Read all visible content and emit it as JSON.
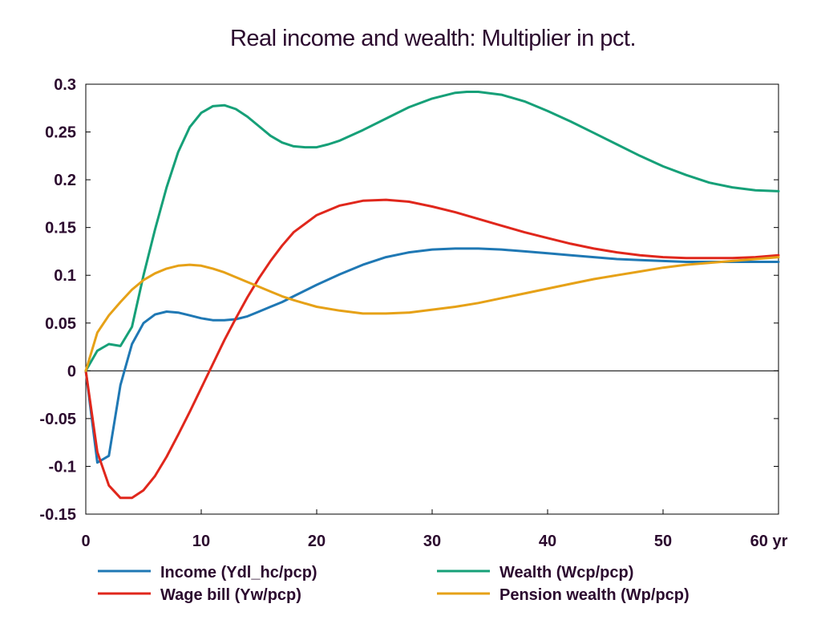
{
  "chart_data": {
    "type": "line",
    "title": "Real income and wealth: Multiplier in pct.",
    "xlim": [
      0,
      60
    ],
    "ylim": [
      -0.15,
      0.3
    ],
    "x_ticks": [
      0,
      10,
      20,
      30,
      40,
      50,
      60
    ],
    "x_tick_labels": [
      "0",
      "10",
      "20",
      "30",
      "40",
      "50",
      "60 yr"
    ],
    "y_ticks": [
      -0.15,
      -0.1,
      -0.05,
      0,
      0.05,
      0.1,
      0.15,
      0.2,
      0.25,
      0.3
    ],
    "y_tick_labels": [
      "-0.15",
      "-0.1",
      "-0.05",
      "0",
      "0.05",
      "0.1",
      "0.15",
      "0.2",
      "0.25",
      "0.3"
    ],
    "zero_line": true,
    "grid": false,
    "legend_position": "bottom",
    "series": [
      {
        "name": "Income (Ydl_hc/pcp)",
        "color": "#1f78b4",
        "points": [
          [
            0,
            0
          ],
          [
            1,
            -0.096
          ],
          [
            2,
            -0.089
          ],
          [
            3,
            -0.015
          ],
          [
            4,
            0.028
          ],
          [
            5,
            0.05
          ],
          [
            6,
            0.059
          ],
          [
            7,
            0.062
          ],
          [
            8,
            0.061
          ],
          [
            9,
            0.058
          ],
          [
            10,
            0.055
          ],
          [
            11,
            0.053
          ],
          [
            12,
            0.053
          ],
          [
            13,
            0.054
          ],
          [
            14,
            0.057
          ],
          [
            15,
            0.062
          ],
          [
            16,
            0.067
          ],
          [
            17,
            0.072
          ],
          [
            18,
            0.078
          ],
          [
            20,
            0.09
          ],
          [
            22,
            0.101
          ],
          [
            24,
            0.111
          ],
          [
            26,
            0.119
          ],
          [
            28,
            0.124
          ],
          [
            30,
            0.127
          ],
          [
            32,
            0.128
          ],
          [
            34,
            0.128
          ],
          [
            36,
            0.127
          ],
          [
            38,
            0.125
          ],
          [
            40,
            0.123
          ],
          [
            42,
            0.121
          ],
          [
            44,
            0.119
          ],
          [
            46,
            0.117
          ],
          [
            48,
            0.116
          ],
          [
            50,
            0.115
          ],
          [
            52,
            0.114
          ],
          [
            54,
            0.114
          ],
          [
            56,
            0.114
          ],
          [
            58,
            0.114
          ],
          [
            60,
            0.114
          ]
        ]
      },
      {
        "name": "Wage bill (Yw/pcp)",
        "color": "#e0271c",
        "points": [
          [
            0,
            0
          ],
          [
            1,
            -0.085
          ],
          [
            2,
            -0.12
          ],
          [
            3,
            -0.133
          ],
          [
            4,
            -0.133
          ],
          [
            5,
            -0.125
          ],
          [
            6,
            -0.11
          ],
          [
            7,
            -0.09
          ],
          [
            8,
            -0.067
          ],
          [
            9,
            -0.043
          ],
          [
            10,
            -0.018
          ],
          [
            11,
            0.007
          ],
          [
            12,
            0.032
          ],
          [
            13,
            0.055
          ],
          [
            14,
            0.077
          ],
          [
            15,
            0.097
          ],
          [
            16,
            0.115
          ],
          [
            17,
            0.131
          ],
          [
            18,
            0.145
          ],
          [
            20,
            0.163
          ],
          [
            22,
            0.173
          ],
          [
            24,
            0.178
          ],
          [
            26,
            0.179
          ],
          [
            28,
            0.177
          ],
          [
            30,
            0.172
          ],
          [
            32,
            0.166
          ],
          [
            34,
            0.159
          ],
          [
            36,
            0.152
          ],
          [
            38,
            0.145
          ],
          [
            40,
            0.139
          ],
          [
            42,
            0.133
          ],
          [
            44,
            0.128
          ],
          [
            46,
            0.124
          ],
          [
            48,
            0.121
          ],
          [
            50,
            0.119
          ],
          [
            52,
            0.118
          ],
          [
            54,
            0.118
          ],
          [
            56,
            0.118
          ],
          [
            58,
            0.119
          ],
          [
            60,
            0.121
          ]
        ]
      },
      {
        "name": "Wealth (Wcp/pcp)",
        "color": "#16a078",
        "points": [
          [
            0,
            0
          ],
          [
            1,
            0.021
          ],
          [
            2,
            0.028
          ],
          [
            3,
            0.026
          ],
          [
            4,
            0.046
          ],
          [
            5,
            0.1
          ],
          [
            6,
            0.148
          ],
          [
            7,
            0.192
          ],
          [
            8,
            0.229
          ],
          [
            9,
            0.255
          ],
          [
            10,
            0.27
          ],
          [
            11,
            0.277
          ],
          [
            12,
            0.278
          ],
          [
            13,
            0.274
          ],
          [
            14,
            0.266
          ],
          [
            15,
            0.256
          ],
          [
            16,
            0.246
          ],
          [
            17,
            0.239
          ],
          [
            18,
            0.235
          ],
          [
            19,
            0.234
          ],
          [
            20,
            0.234
          ],
          [
            21,
            0.237
          ],
          [
            22,
            0.241
          ],
          [
            24,
            0.252
          ],
          [
            26,
            0.264
          ],
          [
            28,
            0.276
          ],
          [
            30,
            0.285
          ],
          [
            32,
            0.291
          ],
          [
            33,
            0.292
          ],
          [
            34,
            0.292
          ],
          [
            36,
            0.289
          ],
          [
            38,
            0.282
          ],
          [
            40,
            0.272
          ],
          [
            42,
            0.261
          ],
          [
            44,
            0.249
          ],
          [
            46,
            0.237
          ],
          [
            48,
            0.225
          ],
          [
            50,
            0.214
          ],
          [
            52,
            0.205
          ],
          [
            54,
            0.197
          ],
          [
            56,
            0.192
          ],
          [
            58,
            0.189
          ],
          [
            60,
            0.188
          ]
        ]
      },
      {
        "name": "Pension wealth (Wp/pcp)",
        "color": "#e6a117",
        "points": [
          [
            0,
            0
          ],
          [
            1,
            0.04
          ],
          [
            2,
            0.058
          ],
          [
            3,
            0.072
          ],
          [
            4,
            0.085
          ],
          [
            5,
            0.095
          ],
          [
            6,
            0.102
          ],
          [
            7,
            0.107
          ],
          [
            8,
            0.11
          ],
          [
            9,
            0.111
          ],
          [
            10,
            0.11
          ],
          [
            11,
            0.107
          ],
          [
            12,
            0.103
          ],
          [
            13,
            0.098
          ],
          [
            14,
            0.093
          ],
          [
            15,
            0.088
          ],
          [
            16,
            0.083
          ],
          [
            17,
            0.078
          ],
          [
            18,
            0.074
          ],
          [
            20,
            0.067
          ],
          [
            22,
            0.063
          ],
          [
            24,
            0.06
          ],
          [
            26,
            0.06
          ],
          [
            28,
            0.061
          ],
          [
            30,
            0.064
          ],
          [
            32,
            0.067
          ],
          [
            34,
            0.071
          ],
          [
            36,
            0.076
          ],
          [
            38,
            0.081
          ],
          [
            40,
            0.086
          ],
          [
            42,
            0.091
          ],
          [
            44,
            0.096
          ],
          [
            46,
            0.1
          ],
          [
            48,
            0.104
          ],
          [
            50,
            0.108
          ],
          [
            52,
            0.111
          ],
          [
            54,
            0.113
          ],
          [
            56,
            0.115
          ],
          [
            58,
            0.117
          ],
          [
            60,
            0.119
          ]
        ]
      }
    ],
    "legend_order": [
      0,
      2,
      1,
      3
    ]
  }
}
